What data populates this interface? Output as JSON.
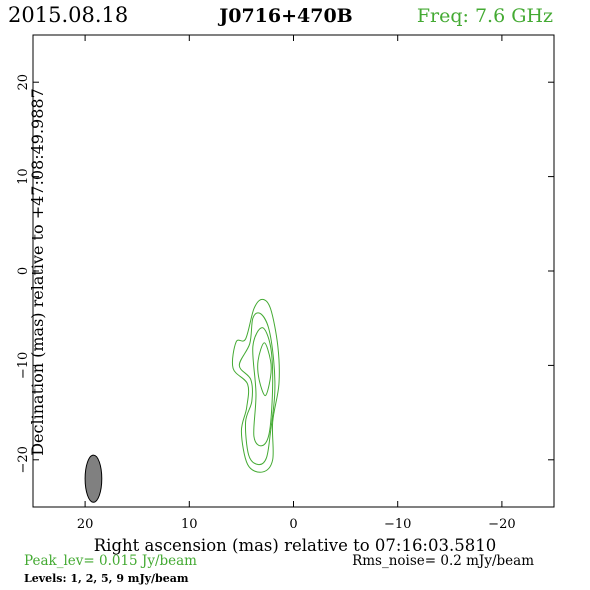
{
  "header": {
    "date": "2015.08.18",
    "source": "J0716+470B",
    "freq": "Freq: 7.6 GHz"
  },
  "colors": {
    "freq": "#44aa33",
    "contour": "#44aa33",
    "beam_fill": "#808080",
    "peak": "#44aa33",
    "axes": "#000000"
  },
  "chart_data": {
    "type": "contour",
    "xlabel": "Right ascension (mas) relative to 07:16:03.5810",
    "ylabel": "Declination (mas) relative to +47:08:49.9887",
    "xlim": [
      25,
      -25
    ],
    "ylim": [
      -25,
      25
    ],
    "x_ticks": [
      20,
      10,
      0,
      -10,
      -20
    ],
    "x_tick_labels": [
      "20",
      "10",
      "0",
      "−10",
      "−20"
    ],
    "y_ticks": [
      20,
      10,
      0,
      -10,
      -20
    ],
    "y_tick_labels": [
      "20",
      "10",
      "0",
      "−10",
      "−20"
    ],
    "beam": {
      "ra": 19.2,
      "dec": -22.0,
      "width": 1.6,
      "height": 5.0
    },
    "levels_mJy": [
      1,
      2,
      5,
      9
    ],
    "contours": [
      {
        "level": 1,
        "points": [
          [
            3.0,
            -3.0
          ],
          [
            2.2,
            -4.0
          ],
          [
            1.5,
            -8.0
          ],
          [
            1.4,
            -12.0
          ],
          [
            2.0,
            -16.0
          ],
          [
            2.0,
            -20.0
          ],
          [
            3.0,
            -21.3
          ],
          [
            4.4,
            -20.5
          ],
          [
            5.0,
            -17.0
          ],
          [
            4.5,
            -14.5
          ],
          [
            4.4,
            -12.0
          ],
          [
            5.8,
            -10.3
          ],
          [
            5.5,
            -7.5
          ],
          [
            4.6,
            -7.2
          ],
          [
            3.8,
            -4.0
          ]
        ]
      },
      {
        "level": 2,
        "points": [
          [
            3.2,
            -4.5
          ],
          [
            2.4,
            -6.0
          ],
          [
            1.9,
            -9.5
          ],
          [
            1.8,
            -13.0
          ],
          [
            2.2,
            -17.0
          ],
          [
            2.6,
            -19.8
          ],
          [
            3.4,
            -20.5
          ],
          [
            4.3,
            -19.5
          ],
          [
            4.6,
            -16.0
          ],
          [
            4.0,
            -13.8
          ],
          [
            4.1,
            -11.5
          ],
          [
            5.2,
            -10.0
          ],
          [
            4.2,
            -7.7
          ],
          [
            3.9,
            -5.0
          ]
        ]
      },
      {
        "level": 5,
        "points": [
          [
            3.0,
            -6.0
          ],
          [
            2.2,
            -8.0
          ],
          [
            2.0,
            -12.0
          ],
          [
            2.3,
            -17.0
          ],
          [
            3.0,
            -18.5
          ],
          [
            3.8,
            -17.5
          ],
          [
            3.6,
            -13.0
          ],
          [
            3.9,
            -8.0
          ]
        ]
      },
      {
        "level": 9,
        "points": [
          [
            2.8,
            -7.6
          ],
          [
            2.2,
            -9.5
          ],
          [
            2.2,
            -11.2
          ],
          [
            2.7,
            -13.2
          ],
          [
            3.3,
            -11.5
          ],
          [
            3.4,
            -9.5
          ]
        ]
      }
    ]
  },
  "footer": {
    "peak": "Peak_lev=  0.015 Jy/beam",
    "rms": "Rms_noise=  0.2 mJy/beam",
    "levels": "Levels:   1,   2,   5,   9 mJy/beam"
  }
}
